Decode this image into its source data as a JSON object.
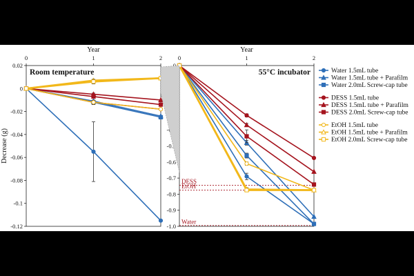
{
  "chart_data": [
    {
      "type": "line",
      "panel": "left",
      "title": "Room temperature",
      "xlabel": "Year",
      "ylabel": "Decrease (g)",
      "xticks": [
        0,
        1,
        2
      ],
      "xlim": [
        0,
        2
      ],
      "ylim": [
        -0.12,
        0.02
      ],
      "yticks": [
        0.02,
        0,
        -0.02,
        -0.04,
        -0.06,
        -0.08,
        -0.1,
        -0.12
      ],
      "ytick_labels": [
        "0.02",
        "0",
        "-0.02",
        "-0.04",
        "-0.06",
        "-0.08",
        "-0.1",
        "-0.12"
      ],
      "series": [
        {
          "name": "Water 1.5mL tube",
          "color": "#2E6FB8",
          "marker": "circle",
          "x": [
            0,
            1,
            2
          ],
          "values": [
            0,
            -0.055,
            -0.115
          ],
          "err": [
            0,
            0.026,
            0
          ]
        },
        {
          "name": "Water 1.5mL tube + Parafilm",
          "color": "#2E6FB8",
          "marker": "triangle",
          "x": [
            0,
            1,
            2
          ],
          "values": [
            0,
            -0.011,
            -0.024
          ],
          "err": [
            0,
            0.001,
            0
          ]
        },
        {
          "name": "Water 2.0mL Screw-cap tube",
          "color": "#2E6FB8",
          "marker": "square",
          "x": [
            0,
            1,
            2
          ],
          "values": [
            0,
            -0.012,
            -0.025
          ],
          "err": [
            0,
            0.001,
            0
          ]
        },
        {
          "name": "DESS 1.5mL tube",
          "color": "#A5141E",
          "marker": "circle",
          "x": [
            0,
            1,
            2
          ],
          "values": [
            0,
            -0.012,
            -0.018
          ],
          "err": [
            0,
            0.002,
            0
          ]
        },
        {
          "name": "DESS 1.5mL tube + Parafilm",
          "color": "#A5141E",
          "marker": "triangle",
          "x": [
            0,
            1,
            2
          ],
          "values": [
            0,
            -0.005,
            -0.01
          ],
          "err": [
            0,
            0.001,
            0
          ]
        },
        {
          "name": "DESS 2.0mL Screw-cap tube",
          "color": "#A5141E",
          "marker": "square",
          "x": [
            0,
            1,
            2
          ],
          "values": [
            0,
            -0.007,
            -0.014
          ],
          "err": [
            0,
            0.001,
            0
          ]
        },
        {
          "name": "EtOH 1.5mL tube",
          "color": "#F2B81B",
          "marker": "circle",
          "x": [
            0,
            1,
            2
          ],
          "values": [
            0,
            -0.012,
            -0.018
          ],
          "err": [
            0,
            0.001,
            0
          ]
        },
        {
          "name": "EtOH 1.5mL tube + Parafilm",
          "color": "#F2B81B",
          "marker": "triangle",
          "x": [
            0,
            1,
            2
          ],
          "values": [
            0,
            0.007,
            0.009
          ],
          "err": [
            0,
            0.001,
            0
          ]
        },
        {
          "name": "EtOH 2.0mL Screw-cap tube",
          "color": "#F2B81B",
          "marker": "square",
          "x": [
            0,
            1,
            2
          ],
          "values": [
            0,
            0.006,
            0.009
          ],
          "err": [
            0,
            0.002,
            0
          ]
        }
      ]
    },
    {
      "type": "line",
      "panel": "right",
      "title": "55°C incubator",
      "xlabel": "Year",
      "ylabel": "",
      "xticks": [
        0,
        1,
        2
      ],
      "xlim": [
        0,
        2
      ],
      "ylim": [
        -1.0,
        0
      ],
      "yticks": [
        0,
        -0.1,
        -0.2,
        -0.3,
        -0.4,
        -0.5,
        -0.6,
        -0.7,
        -0.8,
        -0.9,
        -1
      ],
      "ytick_labels": [
        "0",
        "-0.1",
        "-0.2",
        "-0.3",
        "-0.4",
        "-0.5",
        "-0.6",
        "-0.7",
        "-0.8",
        "-0.9",
        "-1.0"
      ],
      "reference_lines": [
        {
          "label": "DESS",
          "value": -0.745,
          "color": "#A5141E"
        },
        {
          "label": "EtOH",
          "value": -0.775,
          "color": "#A5141E"
        },
        {
          "label": "Water",
          "value": -0.995,
          "color": "#A5141E"
        }
      ],
      "series": [
        {
          "name": "Water 1.5mL tube",
          "color": "#2E6FB8",
          "marker": "circle",
          "x": [
            0,
            1,
            2
          ],
          "values": [
            0,
            -0.69,
            -0.985
          ],
          "err": [
            0,
            0.02,
            0
          ]
        },
        {
          "name": "Water 1.5mL tube + Parafilm",
          "color": "#2E6FB8",
          "marker": "triangle",
          "x": [
            0,
            1,
            2
          ],
          "values": [
            0,
            -0.48,
            -0.94
          ],
          "err": [
            0,
            0.015,
            0
          ]
        },
        {
          "name": "Water 2.0mL Screw-cap tube",
          "color": "#2E6FB8",
          "marker": "square",
          "x": [
            0,
            1,
            2
          ],
          "values": [
            0,
            -0.56,
            -0.985
          ],
          "err": [
            0,
            0.015,
            0
          ]
        },
        {
          "name": "DESS 1.5mL tube",
          "color": "#A5141E",
          "marker": "circle",
          "x": [
            0,
            1,
            2
          ],
          "values": [
            0,
            -0.31,
            -0.575
          ],
          "err": [
            0,
            0.01,
            0
          ]
        },
        {
          "name": "DESS 1.5mL tube + Parafilm",
          "color": "#A5141E",
          "marker": "triangle",
          "x": [
            0,
            1,
            2
          ],
          "values": [
            0,
            -0.37,
            -0.66
          ],
          "err": [
            0,
            0.01,
            0
          ]
        },
        {
          "name": "DESS 2.0mL Screw-cap tube",
          "color": "#A5141E",
          "marker": "square",
          "x": [
            0,
            1,
            2
          ],
          "values": [
            0,
            -0.44,
            -0.74
          ],
          "err": [
            0,
            0.04,
            0
          ]
        },
        {
          "name": "EtOH 1.5mL tube",
          "color": "#F2B81B",
          "marker": "circle",
          "x": [
            0,
            1,
            2
          ],
          "values": [
            0,
            -0.61,
            -0.775
          ],
          "err": [
            0,
            0.01,
            0
          ]
        },
        {
          "name": "EtOH 1.5mL tube + Parafilm",
          "color": "#F2B81B",
          "marker": "triangle",
          "x": [
            0,
            1,
            2
          ],
          "values": [
            0,
            -0.77,
            -0.775
          ],
          "err": [
            0,
            0.01,
            0
          ]
        },
        {
          "name": "EtOH 2.0mL Screw-cap tube",
          "color": "#F2B81B",
          "marker": "square",
          "x": [
            0,
            1,
            2
          ],
          "values": [
            0,
            -0.775,
            -0.775
          ],
          "err": [
            0,
            0.01,
            0
          ]
        }
      ]
    }
  ],
  "legend": {
    "groups": [
      [
        "Water 1.5mL tube",
        "Water 1.5mL tube + Parafilm",
        "Water 2.0mL Screw-cap tube"
      ],
      [
        "DESS 1.5mL tube",
        "DESS 1.5mL tube + Parafilm",
        "DESS 2.0mL Screw-cap tube"
      ],
      [
        "EtOH 1.5mL tube",
        "EtOH 1.5mL tube + Parafilm",
        "EtOH 2.0mL Screw-cap tube"
      ]
    ]
  }
}
